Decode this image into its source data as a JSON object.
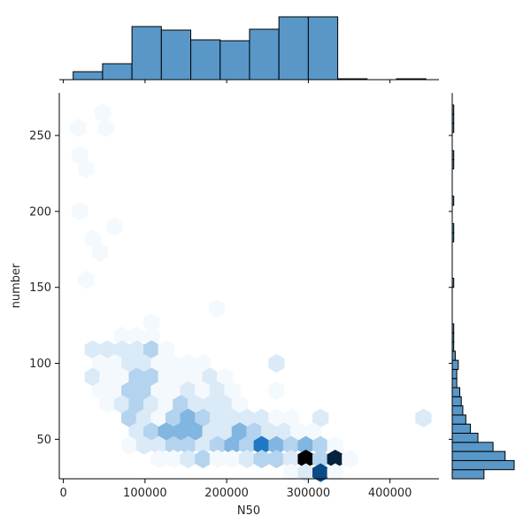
{
  "chart_data": {
    "type": "hexbin",
    "xlabel": "N50",
    "ylabel": "number",
    "xlim": [
      -5000,
      460000
    ],
    "ylim": [
      24,
      278
    ],
    "x_ticks": [
      0,
      100000,
      200000,
      300000,
      400000
    ],
    "x_tick_labels": [
      "0",
      "100000",
      "200000",
      "300000",
      "400000"
    ],
    "y_ticks": [
      50,
      100,
      150,
      200,
      250
    ],
    "y_tick_labels": [
      "50",
      "100",
      "150",
      "200",
      "250"
    ],
    "colors": {
      "hex_cmap": [
        "#f4f9fe",
        "#dbeaf7",
        "#b3d3ee",
        "#80b6e0",
        "#3e90cd",
        "#1f78c4",
        "#0a4a85",
        "#06223d",
        "#000000"
      ],
      "hist_fill": "#5897c8",
      "hist_edge": "#000000",
      "axes": "#000000"
    },
    "hexbins": [
      {
        "x": 18000,
        "y": 255,
        "count": 1
      },
      {
        "x": 48000,
        "y": 265,
        "count": 1
      },
      {
        "x": 52000,
        "y": 255,
        "count": 1
      },
      {
        "x": 20000,
        "y": 237,
        "count": 1
      },
      {
        "x": 28000,
        "y": 228,
        "count": 1
      },
      {
        "x": 20000,
        "y": 200,
        "count": 1
      },
      {
        "x": 63000,
        "y": 190,
        "count": 1
      },
      {
        "x": 36000,
        "y": 182,
        "count": 1
      },
      {
        "x": 45000,
        "y": 173,
        "count": 1
      },
      {
        "x": 28000,
        "y": 155,
        "count": 1
      },
      {
        "x": 188000,
        "y": 136,
        "count": 1
      },
      {
        "x": 72000,
        "y": 118,
        "count": 1
      },
      {
        "x": 90000,
        "y": 118,
        "count": 1
      },
      {
        "x": 108000,
        "y": 118,
        "count": 1
      },
      {
        "x": 108000,
        "y": 127,
        "count": 1
      },
      {
        "x": 36000,
        "y": 109,
        "count": 2
      },
      {
        "x": 54000,
        "y": 109,
        "count": 2
      },
      {
        "x": 72000,
        "y": 109,
        "count": 2
      },
      {
        "x": 90000,
        "y": 109,
        "count": 2
      },
      {
        "x": 108000,
        "y": 109,
        "count": 3
      },
      {
        "x": 126000,
        "y": 109,
        "count": 1
      },
      {
        "x": 45000,
        "y": 100,
        "count": 1
      },
      {
        "x": 63000,
        "y": 100,
        "count": 1
      },
      {
        "x": 81000,
        "y": 100,
        "count": 2
      },
      {
        "x": 99000,
        "y": 100,
        "count": 2
      },
      {
        "x": 117000,
        "y": 100,
        "count": 1
      },
      {
        "x": 135000,
        "y": 100,
        "count": 1
      },
      {
        "x": 153000,
        "y": 100,
        "count": 1
      },
      {
        "x": 171000,
        "y": 100,
        "count": 1
      },
      {
        "x": 261000,
        "y": 100,
        "count": 2
      },
      {
        "x": 36000,
        "y": 91,
        "count": 2
      },
      {
        "x": 54000,
        "y": 91,
        "count": 1
      },
      {
        "x": 72000,
        "y": 91,
        "count": 1
      },
      {
        "x": 90000,
        "y": 91,
        "count": 3
      },
      {
        "x": 108000,
        "y": 91,
        "count": 3
      },
      {
        "x": 126000,
        "y": 91,
        "count": 1
      },
      {
        "x": 144000,
        "y": 91,
        "count": 1
      },
      {
        "x": 162000,
        "y": 91,
        "count": 1
      },
      {
        "x": 180000,
        "y": 91,
        "count": 2
      },
      {
        "x": 198000,
        "y": 91,
        "count": 1
      },
      {
        "x": 45000,
        "y": 82,
        "count": 1
      },
      {
        "x": 63000,
        "y": 82,
        "count": 1
      },
      {
        "x": 81000,
        "y": 82,
        "count": 3
      },
      {
        "x": 99000,
        "y": 82,
        "count": 3
      },
      {
        "x": 117000,
        "y": 82,
        "count": 1
      },
      {
        "x": 135000,
        "y": 82,
        "count": 1
      },
      {
        "x": 153000,
        "y": 82,
        "count": 2
      },
      {
        "x": 171000,
        "y": 82,
        "count": 1
      },
      {
        "x": 189000,
        "y": 82,
        "count": 2
      },
      {
        "x": 207000,
        "y": 82,
        "count": 1
      },
      {
        "x": 261000,
        "y": 82,
        "count": 1
      },
      {
        "x": 54000,
        "y": 73,
        "count": 1
      },
      {
        "x": 72000,
        "y": 73,
        "count": 2
      },
      {
        "x": 90000,
        "y": 73,
        "count": 3
      },
      {
        "x": 108000,
        "y": 73,
        "count": 2
      },
      {
        "x": 126000,
        "y": 73,
        "count": 1
      },
      {
        "x": 144000,
        "y": 73,
        "count": 3
      },
      {
        "x": 162000,
        "y": 73,
        "count": 2
      },
      {
        "x": 180000,
        "y": 73,
        "count": 2
      },
      {
        "x": 198000,
        "y": 73,
        "count": 2
      },
      {
        "x": 216000,
        "y": 73,
        "count": 1
      },
      {
        "x": 81000,
        "y": 64,
        "count": 3
      },
      {
        "x": 99000,
        "y": 64,
        "count": 2
      },
      {
        "x": 117000,
        "y": 64,
        "count": 1
      },
      {
        "x": 135000,
        "y": 64,
        "count": 3
      },
      {
        "x": 153000,
        "y": 64,
        "count": 4
      },
      {
        "x": 171000,
        "y": 64,
        "count": 3
      },
      {
        "x": 189000,
        "y": 64,
        "count": 2
      },
      {
        "x": 207000,
        "y": 64,
        "count": 2
      },
      {
        "x": 225000,
        "y": 64,
        "count": 2
      },
      {
        "x": 243000,
        "y": 64,
        "count": 2
      },
      {
        "x": 261000,
        "y": 64,
        "count": 1
      },
      {
        "x": 279000,
        "y": 64,
        "count": 1
      },
      {
        "x": 315000,
        "y": 64,
        "count": 2
      },
      {
        "x": 441000,
        "y": 64,
        "count": 2
      },
      {
        "x": 90000,
        "y": 55,
        "count": 2
      },
      {
        "x": 108000,
        "y": 55,
        "count": 3
      },
      {
        "x": 126000,
        "y": 55,
        "count": 4
      },
      {
        "x": 144000,
        "y": 55,
        "count": 4
      },
      {
        "x": 162000,
        "y": 55,
        "count": 4
      },
      {
        "x": 180000,
        "y": 55,
        "count": 2
      },
      {
        "x": 198000,
        "y": 55,
        "count": 2
      },
      {
        "x": 216000,
        "y": 55,
        "count": 4
      },
      {
        "x": 234000,
        "y": 55,
        "count": 3
      },
      {
        "x": 252000,
        "y": 55,
        "count": 2
      },
      {
        "x": 270000,
        "y": 55,
        "count": 2
      },
      {
        "x": 288000,
        "y": 55,
        "count": 1
      },
      {
        "x": 306000,
        "y": 55,
        "count": 1
      },
      {
        "x": 81000,
        "y": 46,
        "count": 1
      },
      {
        "x": 99000,
        "y": 46,
        "count": 2
      },
      {
        "x": 117000,
        "y": 46,
        "count": 2
      },
      {
        "x": 135000,
        "y": 46,
        "count": 3
      },
      {
        "x": 153000,
        "y": 46,
        "count": 3
      },
      {
        "x": 171000,
        "y": 46,
        "count": 2
      },
      {
        "x": 189000,
        "y": 46,
        "count": 3
      },
      {
        "x": 207000,
        "y": 46,
        "count": 4
      },
      {
        "x": 225000,
        "y": 46,
        "count": 3
      },
      {
        "x": 243000,
        "y": 46,
        "count": 5
      },
      {
        "x": 261000,
        "y": 46,
        "count": 4
      },
      {
        "x": 279000,
        "y": 46,
        "count": 3
      },
      {
        "x": 297000,
        "y": 46,
        "count": 4
      },
      {
        "x": 315000,
        "y": 46,
        "count": 3
      },
      {
        "x": 333000,
        "y": 46,
        "count": 1
      },
      {
        "x": 117000,
        "y": 37,
        "count": 1
      },
      {
        "x": 135000,
        "y": 37,
        "count": 1
      },
      {
        "x": 153000,
        "y": 37,
        "count": 2
      },
      {
        "x": 171000,
        "y": 37,
        "count": 3
      },
      {
        "x": 189000,
        "y": 37,
        "count": 1
      },
      {
        "x": 207000,
        "y": 37,
        "count": 1
      },
      {
        "x": 225000,
        "y": 37,
        "count": 2
      },
      {
        "x": 243000,
        "y": 37,
        "count": 3
      },
      {
        "x": 261000,
        "y": 37,
        "count": 3
      },
      {
        "x": 279000,
        "y": 37,
        "count": 2
      },
      {
        "x": 297000,
        "y": 37,
        "count": 8
      },
      {
        "x": 315000,
        "y": 37,
        "count": 3
      },
      {
        "x": 333000,
        "y": 37,
        "count": 7
      },
      {
        "x": 351000,
        "y": 37,
        "count": 1
      },
      {
        "x": 279000,
        "y": 28,
        "count": 1
      },
      {
        "x": 297000,
        "y": 28,
        "count": 2
      },
      {
        "x": 315000,
        "y": 28,
        "count": 6
      },
      {
        "x": 333000,
        "y": 28,
        "count": 1
      }
    ],
    "x_marginal_hist": {
      "bin_edges": [
        12000,
        48000,
        84000,
        120000,
        156000,
        192000,
        228000,
        264000,
        300000,
        336000,
        372000,
        408000,
        444000
      ],
      "counts": [
        9,
        18,
        60,
        56,
        45,
        44,
        57,
        71,
        71,
        1,
        0,
        1
      ]
    },
    "y_marginal_hist": {
      "bin_edges": [
        24,
        30,
        36,
        42,
        48,
        54,
        60,
        66,
        72,
        78,
        84,
        90,
        96,
        102,
        108,
        114,
        120,
        126,
        132,
        138,
        144,
        150,
        156,
        162,
        168,
        174,
        180,
        186,
        192,
        198,
        204,
        210,
        216,
        222,
        228,
        234,
        240,
        246,
        252,
        258,
        264,
        270,
        276
      ],
      "counts": [
        21,
        41,
        35,
        27,
        17,
        12,
        9,
        7,
        6,
        5,
        3,
        3,
        4,
        2,
        1,
        1,
        1,
        0,
        0,
        0,
        0,
        1,
        0,
        0,
        0,
        0,
        1,
        1,
        0,
        0,
        1,
        0,
        0,
        0,
        1,
        1,
        0,
        0,
        1,
        1,
        1,
        0
      ]
    }
  }
}
